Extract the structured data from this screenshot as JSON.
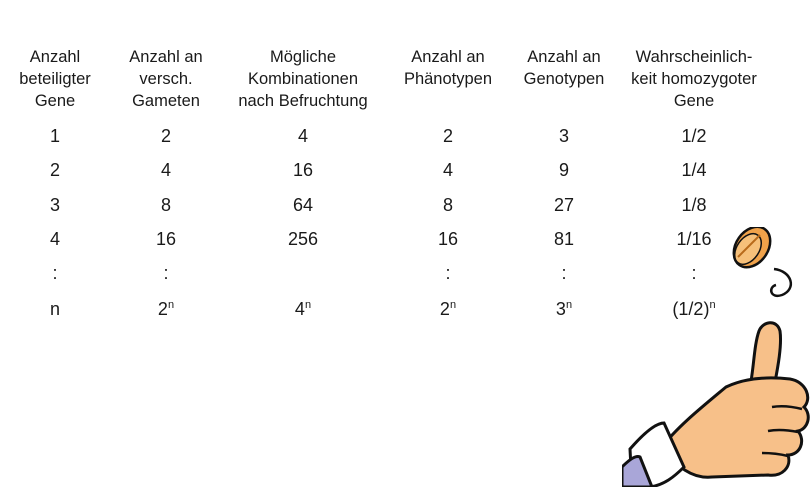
{
  "table": {
    "headers": [
      [
        "Anzahl",
        "beteiligter",
        "Gene"
      ],
      [
        "Anzahl an",
        "versch.",
        "Gameten"
      ],
      [
        "Mögliche",
        "Kombinationen",
        "nach Befruchtung"
      ],
      [
        "Anzahl an",
        "Phänotypen"
      ],
      [
        "Anzahl an",
        "Genotypen"
      ],
      [
        "Wahrscheinlich-",
        "keit homozygoter",
        "Gene"
      ]
    ],
    "rows": [
      [
        "1",
        "2",
        "4",
        "2",
        "3",
        "1/2"
      ],
      [
        "2",
        "4",
        "16",
        "4",
        "9",
        "1/4"
      ],
      [
        "3",
        "8",
        "64",
        "8",
        "27",
        "1/8"
      ],
      [
        "4",
        "16",
        "256",
        "16",
        "81",
        "1/16"
      ],
      [
        ":",
        ":",
        "",
        ":",
        ":",
        ":"
      ]
    ],
    "last_row": [
      {
        "base": "n",
        "exp": ""
      },
      {
        "base": "2",
        "exp": "n"
      },
      {
        "base": "4",
        "exp": "n"
      },
      {
        "base": "2",
        "exp": "n"
      },
      {
        "base": "3",
        "exp": "n"
      },
      {
        "base": "(1/2)",
        "exp": "n"
      }
    ]
  },
  "illustration": {
    "name": "hand-flipping-coin",
    "colors": {
      "skin": "#f7c089",
      "coin": "#f0a24a",
      "sleeve": "#a9a6d8",
      "outline": "#111111"
    }
  }
}
